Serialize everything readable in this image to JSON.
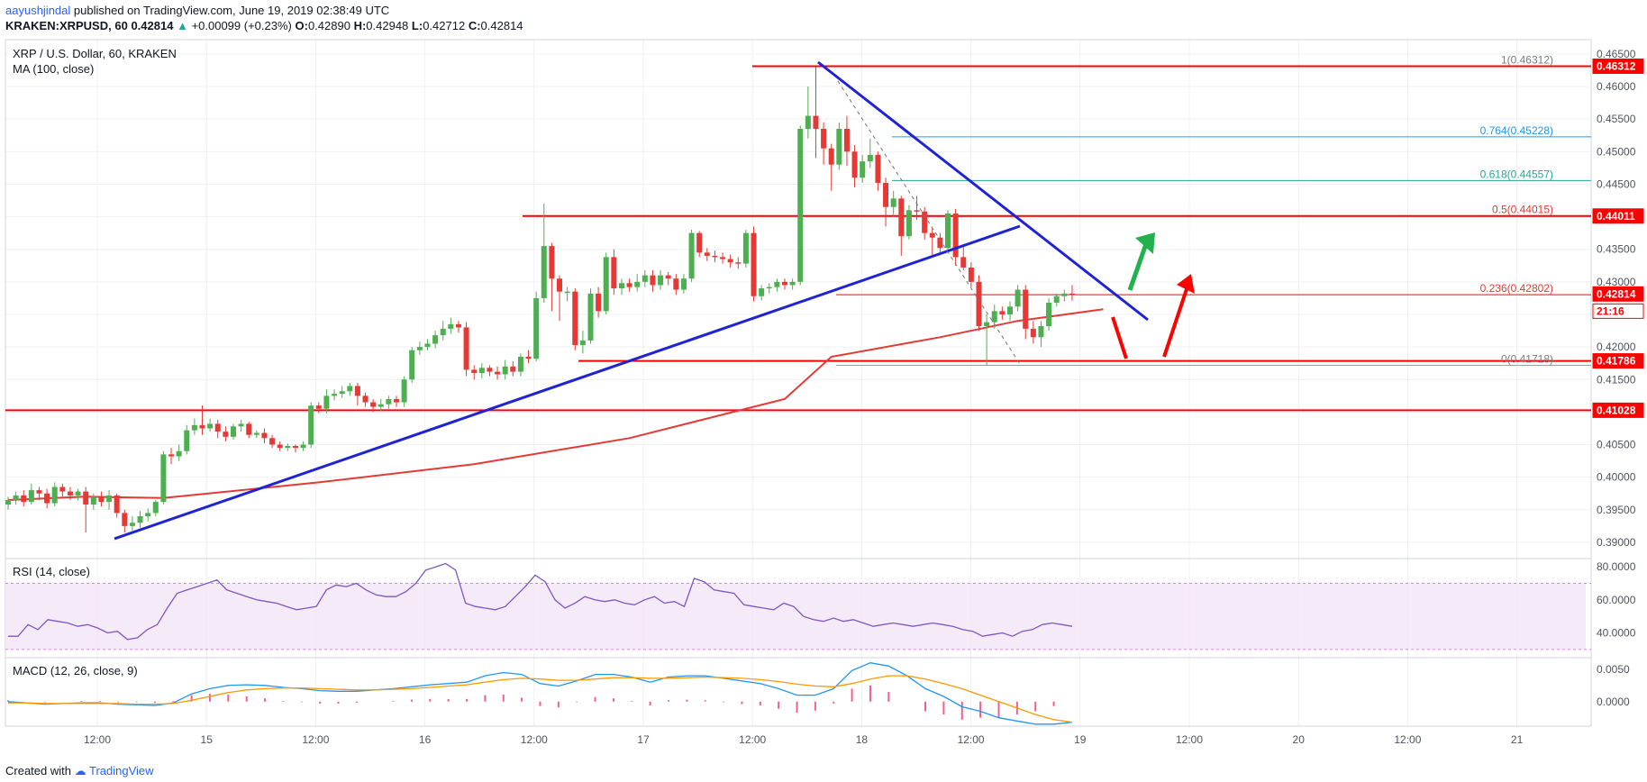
{
  "header": {
    "author": "aayushjindal",
    "published": "published on TradingView.com, June 19, 2019 02:38:49 UTC",
    "symbol": "KRAKEN:XRPUSD, 60",
    "last": "0.42814",
    "change": "+0.00099 (+0.23%)",
    "o_label": "O:",
    "o": "0.42890",
    "h_label": "H:",
    "h": "0.42948",
    "l_label": "L:",
    "l": "0.42712",
    "c_label": "C:",
    "c": "0.42814"
  },
  "legend": {
    "pair": "XRP / U.S. Dollar, 60, KRAKEN",
    "ma": "MA (100, close)",
    "rsi": "RSI (14, close)",
    "macd": "MACD (12, 26, close, 9)"
  },
  "footer": {
    "created": "Created with",
    "brand": "TradingView"
  },
  "colors": {
    "bull": "#4caf50",
    "bear": "#e53935",
    "ma": "#e53935",
    "trend": "#1f23d6",
    "level": "#ff0000",
    "rsi": "#7e57c2",
    "macd": "#2196f3",
    "signal": "#ff9800",
    "green_arrow": "#22b14c",
    "red_arrow": "#ff0000"
  },
  "chart_data": [
    {
      "type": "candlestick",
      "x_ticks": [
        "12:00",
        "15",
        "12:00",
        "16",
        "12:00",
        "17",
        "12:00",
        "18",
        "12:00",
        "19",
        "12:00",
        "20",
        "12:00",
        "21"
      ],
      "y_ticks": [
        "0.46500",
        "0.46000",
        "0.45500",
        "0.45000",
        "0.44500",
        "0.44000",
        "0.43500",
        "0.43000",
        "0.42500",
        "0.42000",
        "0.41500",
        "0.41000",
        "0.40500",
        "0.40000",
        "0.39500",
        "0.39000"
      ],
      "ylim": [
        0.3875,
        0.4672
      ],
      "price_badges": [
        {
          "value": "0.46312",
          "level": 0.46312
        },
        {
          "value": "0.44011",
          "level": 0.44011
        },
        {
          "value": "0.42814",
          "level": 0.42814
        },
        {
          "value": "21:16",
          "level": 0.4255,
          "style": "countdown"
        },
        {
          "value": "0.41786",
          "level": 0.41786
        },
        {
          "value": "0.41028",
          "level": 0.41028
        }
      ],
      "fib_labels": [
        {
          "ratio": "1",
          "value": "0.46312",
          "level": 0.46312
        },
        {
          "ratio": "0.764",
          "value": "0.45228",
          "level": 0.45228
        },
        {
          "ratio": "0.618",
          "value": "0.44557",
          "level": 0.44557
        },
        {
          "ratio": "0.5",
          "value": "0.44015",
          "level": 0.44015
        },
        {
          "ratio": "0.236",
          "value": "0.42802",
          "level": 0.42802
        },
        {
          "ratio": "0",
          "value": "0.41718",
          "level": 0.41718
        }
      ],
      "candles": [
        [
          0.3958,
          0.3965,
          0.395,
          0.397
        ],
        [
          0.3965,
          0.3972,
          0.3958,
          0.3978
        ],
        [
          0.3972,
          0.3962,
          0.3955,
          0.398
        ],
        [
          0.3962,
          0.398,
          0.3958,
          0.399
        ],
        [
          0.398,
          0.3975,
          0.3965,
          0.3985
        ],
        [
          0.3975,
          0.396,
          0.3952,
          0.3982
        ],
        [
          0.396,
          0.3985,
          0.3955,
          0.3992
        ],
        [
          0.3985,
          0.3978,
          0.397,
          0.399
        ],
        [
          0.3978,
          0.3972,
          0.3965,
          0.3985
        ],
        [
          0.3972,
          0.3978,
          0.3965,
          0.3982
        ],
        [
          0.3978,
          0.3958,
          0.3915,
          0.3985
        ],
        [
          0.3958,
          0.397,
          0.395,
          0.3975
        ],
        [
          0.397,
          0.3962,
          0.3955,
          0.3978
        ],
        [
          0.3962,
          0.3972,
          0.395,
          0.398
        ],
        [
          0.3972,
          0.3945,
          0.3938,
          0.3975
        ],
        [
          0.3945,
          0.3925,
          0.3915,
          0.395
        ],
        [
          0.3925,
          0.393,
          0.3918,
          0.394
        ],
        [
          0.393,
          0.394,
          0.3922,
          0.3948
        ],
        [
          0.394,
          0.3945,
          0.3932,
          0.3952
        ],
        [
          0.3945,
          0.3962,
          0.394,
          0.3965
        ],
        [
          0.3962,
          0.4035,
          0.3958,
          0.404
        ],
        [
          0.4035,
          0.4032,
          0.402,
          0.4045
        ],
        [
          0.4032,
          0.404,
          0.4025,
          0.405
        ],
        [
          0.404,
          0.4072,
          0.4035,
          0.408
        ],
        [
          0.4072,
          0.408,
          0.4065,
          0.409
        ],
        [
          0.408,
          0.4075,
          0.4065,
          0.411
        ],
        [
          0.4075,
          0.4082,
          0.407,
          0.409
        ],
        [
          0.4082,
          0.407,
          0.406,
          0.4088
        ],
        [
          0.407,
          0.4062,
          0.4055,
          0.4078
        ],
        [
          0.4062,
          0.4078,
          0.4058,
          0.4082
        ],
        [
          0.4078,
          0.4082,
          0.407,
          0.4088
        ],
        [
          0.4082,
          0.4065,
          0.406,
          0.4085
        ],
        [
          0.4065,
          0.4068,
          0.406,
          0.4072
        ],
        [
          0.4068,
          0.406,
          0.4052,
          0.4075
        ],
        [
          0.406,
          0.405,
          0.4045,
          0.4065
        ],
        [
          0.405,
          0.4045,
          0.404,
          0.4055
        ],
        [
          0.4045,
          0.4048,
          0.404,
          0.4052
        ],
        [
          0.4048,
          0.4045,
          0.4038,
          0.405
        ],
        [
          0.4045,
          0.405,
          0.404,
          0.4055
        ],
        [
          0.405,
          0.411,
          0.4045,
          0.4115
        ],
        [
          0.411,
          0.4105,
          0.4098,
          0.4115
        ],
        [
          0.4105,
          0.4125,
          0.4098,
          0.4135
        ],
        [
          0.4125,
          0.4128,
          0.4118,
          0.4135
        ],
        [
          0.4128,
          0.4132,
          0.4122,
          0.414
        ],
        [
          0.4132,
          0.414,
          0.4125,
          0.4145
        ],
        [
          0.414,
          0.4125,
          0.411,
          0.4145
        ],
        [
          0.4125,
          0.4115,
          0.4108,
          0.413
        ],
        [
          0.4115,
          0.4108,
          0.41,
          0.412
        ],
        [
          0.4108,
          0.4112,
          0.4102,
          0.412
        ],
        [
          0.4112,
          0.412,
          0.4105,
          0.4125
        ],
        [
          0.412,
          0.4115,
          0.4108,
          0.4125
        ],
        [
          0.4115,
          0.415,
          0.4108,
          0.4155
        ],
        [
          0.415,
          0.4195,
          0.4145,
          0.42
        ],
        [
          0.4195,
          0.42,
          0.4188,
          0.4208
        ],
        [
          0.42,
          0.4205,
          0.4195,
          0.4212
        ],
        [
          0.4205,
          0.4218,
          0.4198,
          0.4225
        ],
        [
          0.4218,
          0.4228,
          0.421,
          0.424
        ],
        [
          0.4228,
          0.4235,
          0.422,
          0.4245
        ],
        [
          0.4235,
          0.423,
          0.4222,
          0.424
        ],
        [
          0.423,
          0.4165,
          0.4155,
          0.4238
        ],
        [
          0.4165,
          0.416,
          0.415,
          0.4172
        ],
        [
          0.416,
          0.4168,
          0.4152,
          0.4175
        ],
        [
          0.4168,
          0.4162,
          0.4155,
          0.4172
        ],
        [
          0.4162,
          0.4158,
          0.415,
          0.417
        ],
        [
          0.4158,
          0.417,
          0.415,
          0.418
        ],
        [
          0.417,
          0.4162,
          0.4155,
          0.4178
        ],
        [
          0.4162,
          0.4185,
          0.4155,
          0.419
        ],
        [
          0.4185,
          0.4182,
          0.4175,
          0.4195
        ],
        [
          0.4182,
          0.4275,
          0.4178,
          0.4285
        ],
        [
          0.4275,
          0.4355,
          0.4268,
          0.442
        ],
        [
          0.4355,
          0.4305,
          0.4255,
          0.436
        ],
        [
          0.4305,
          0.4285,
          0.424,
          0.431
        ],
        [
          0.4285,
          0.4285,
          0.427,
          0.4292
        ],
        [
          0.4285,
          0.4203,
          0.4195,
          0.429
        ],
        [
          0.4203,
          0.421,
          0.419,
          0.4225
        ],
        [
          0.421,
          0.4282,
          0.4205,
          0.429
        ],
        [
          0.4282,
          0.4255,
          0.4245,
          0.4292
        ],
        [
          0.4255,
          0.4338,
          0.425,
          0.4345
        ],
        [
          0.4338,
          0.429,
          0.428,
          0.435
        ],
        [
          0.429,
          0.4298,
          0.428,
          0.4305
        ],
        [
          0.4298,
          0.4292,
          0.4285,
          0.4305
        ],
        [
          0.4292,
          0.43,
          0.4285,
          0.4312
        ],
        [
          0.43,
          0.431,
          0.4292,
          0.4318
        ],
        [
          0.431,
          0.4295,
          0.4285,
          0.4318
        ],
        [
          0.4295,
          0.431,
          0.4288,
          0.4318
        ],
        [
          0.431,
          0.4305,
          0.4295,
          0.4315
        ],
        [
          0.4305,
          0.4288,
          0.428,
          0.4312
        ],
        [
          0.4288,
          0.4305,
          0.4282,
          0.4312
        ],
        [
          0.4305,
          0.4375,
          0.43,
          0.438
        ],
        [
          0.4375,
          0.4345,
          0.4338,
          0.4378
        ],
        [
          0.4345,
          0.434,
          0.4332,
          0.4352
        ],
        [
          0.434,
          0.4338,
          0.433,
          0.4348
        ],
        [
          0.4338,
          0.4335,
          0.4328,
          0.4345
        ],
        [
          0.4335,
          0.433,
          0.4322,
          0.4342
        ],
        [
          0.433,
          0.4328,
          0.432,
          0.4338
        ],
        [
          0.4328,
          0.4375,
          0.4322,
          0.438
        ],
        [
          0.4375,
          0.4278,
          0.427,
          0.4385
        ],
        [
          0.4278,
          0.429,
          0.4272,
          0.4295
        ],
        [
          0.429,
          0.4292,
          0.4282,
          0.4298
        ],
        [
          0.4292,
          0.43,
          0.4285,
          0.4305
        ],
        [
          0.43,
          0.4295,
          0.4288,
          0.4305
        ],
        [
          0.4295,
          0.43,
          0.4288,
          0.4305
        ],
        [
          0.43,
          0.4535,
          0.4295,
          0.454
        ],
        [
          0.4535,
          0.4555,
          0.452,
          0.46
        ],
        [
          0.4555,
          0.4535,
          0.449,
          0.463
        ],
        [
          0.4535,
          0.4505,
          0.448,
          0.4545
        ],
        [
          0.4505,
          0.448,
          0.444,
          0.4512
        ],
        [
          0.448,
          0.4535,
          0.4472,
          0.4545
        ],
        [
          0.4535,
          0.45,
          0.4478,
          0.4555
        ],
        [
          0.45,
          0.446,
          0.4445,
          0.451
        ],
        [
          0.446,
          0.4485,
          0.4452,
          0.4495
        ],
        [
          0.4485,
          0.4495,
          0.4475,
          0.452
        ],
        [
          0.4495,
          0.4452,
          0.444,
          0.45
        ],
        [
          0.4452,
          0.4415,
          0.4385,
          0.446
        ],
        [
          0.4415,
          0.4428,
          0.44,
          0.444
        ],
        [
          0.4428,
          0.437,
          0.434,
          0.4432
        ],
        [
          0.437,
          0.441,
          0.4365,
          0.4418
        ],
        [
          0.441,
          0.4408,
          0.4395,
          0.4432
        ],
        [
          0.4408,
          0.4375,
          0.4365,
          0.4415
        ],
        [
          0.4375,
          0.4368,
          0.434,
          0.4382
        ],
        [
          0.4368,
          0.4352,
          0.4345,
          0.4375
        ],
        [
          0.4352,
          0.4405,
          0.4345,
          0.441
        ],
        [
          0.4405,
          0.4338,
          0.4325,
          0.4412
        ],
        [
          0.4338,
          0.4322,
          0.4318,
          0.4358
        ],
        [
          0.4322,
          0.43,
          0.4292,
          0.433
        ],
        [
          0.43,
          0.4232,
          0.4225,
          0.431
        ],
        [
          0.4232,
          0.4238,
          0.4172,
          0.425
        ],
        [
          0.4238,
          0.4255,
          0.4228,
          0.4265
        ],
        [
          0.4255,
          0.425,
          0.4242,
          0.4262
        ],
        [
          0.425,
          0.4262,
          0.424,
          0.427
        ],
        [
          0.4262,
          0.4288,
          0.4255,
          0.4295
        ],
        [
          0.4288,
          0.4228,
          0.4212,
          0.4295
        ],
        [
          0.4228,
          0.4215,
          0.4205,
          0.424
        ],
        [
          0.4215,
          0.4232,
          0.42,
          0.424
        ],
        [
          0.4232,
          0.4268,
          0.4225,
          0.4275
        ],
        [
          0.4268,
          0.4278,
          0.4262,
          0.4282
        ],
        [
          0.4278,
          0.4282,
          0.427,
          0.4288
        ],
        [
          0.4282,
          0.4281,
          0.4271,
          0.4295
        ]
      ],
      "ma_line": [
        [
          0,
          0.3965
        ],
        [
          10,
          0.397
        ],
        [
          20,
          0.3968
        ],
        [
          40,
          0.3992
        ],
        [
          60,
          0.402
        ],
        [
          80,
          0.406
        ],
        [
          100,
          0.412
        ],
        [
          106,
          0.4185
        ],
        [
          120,
          0.4215
        ],
        [
          130,
          0.424
        ],
        [
          135,
          0.4248
        ],
        [
          141,
          0.4258
        ]
      ],
      "horizontal_levels": [
        0.46312,
        0.44011,
        0.41786,
        0.41028
      ],
      "fib_line_level": 0.42802
    },
    {
      "type": "line",
      "name": "RSI",
      "y_ticks": [
        "80.0000",
        "60.0000",
        "40.0000"
      ],
      "ylim": [
        25,
        85
      ],
      "band": [
        30,
        70
      ],
      "values": [
        38,
        38,
        45,
        42,
        48,
        47,
        46,
        44,
        45,
        43,
        40,
        41,
        36,
        37,
        42,
        45,
        55,
        64,
        66,
        68,
        70,
        72,
        66,
        64,
        62,
        60,
        59,
        58,
        56,
        54,
        55,
        56,
        66,
        69,
        68,
        70,
        66,
        63,
        62,
        62,
        65,
        70,
        78,
        80,
        82,
        78,
        58,
        56,
        55,
        54,
        56,
        62,
        68,
        75,
        71,
        60,
        55,
        58,
        62,
        60,
        59,
        60,
        58,
        57,
        60,
        62,
        58,
        59,
        56,
        73,
        71,
        66,
        65,
        64,
        57,
        56,
        55,
        54,
        58,
        56,
        50,
        48,
        47,
        49,
        47,
        48,
        46,
        44,
        45,
        46,
        45,
        44,
        45,
        46,
        45,
        44,
        42,
        41,
        38,
        39,
        40,
        38,
        41,
        42,
        45,
        46,
        45,
        44
      ]
    },
    {
      "type": "line",
      "name": "MACD",
      "y_ticks": [
        "0.0050",
        "0.0000"
      ],
      "ylim": [
        -0.0038,
        0.0068
      ],
      "macd": [
        0.0,
        -0.0002,
        -0.0004,
        -0.0003,
        -0.0002,
        -0.0002,
        -0.0004,
        -0.0005,
        -0.0006,
        -0.0002,
        0.0012,
        0.002,
        0.0025,
        0.0026,
        0.0025,
        0.0022,
        0.002,
        0.0017,
        0.0016,
        0.0016,
        0.0018,
        0.002,
        0.0023,
        0.0026,
        0.0028,
        0.003,
        0.004,
        0.0045,
        0.0042,
        0.0028,
        0.0024,
        0.0032,
        0.0042,
        0.0042,
        0.0038,
        0.003,
        0.0038,
        0.004,
        0.004,
        0.0036,
        0.0032,
        0.0028,
        0.002,
        0.001,
        0.001,
        0.002,
        0.0048,
        0.006,
        0.0055,
        0.004,
        0.002,
        0.0008,
        -0.0008,
        -0.0015,
        -0.0025,
        -0.003,
        -0.0035,
        -0.0035,
        -0.0032
      ],
      "signal": [
        -0.0002,
        -0.0002,
        -0.0003,
        -0.0003,
        -0.0003,
        -0.0003,
        -0.0003,
        -0.0004,
        -0.0004,
        -0.0003,
        0.0002,
        0.0008,
        0.0014,
        0.0018,
        0.002,
        0.0021,
        0.0021,
        0.002,
        0.0019,
        0.0018,
        0.0018,
        0.0019,
        0.002,
        0.0022,
        0.0024,
        0.0026,
        0.003,
        0.0034,
        0.0036,
        0.0035,
        0.0033,
        0.0033,
        0.0035,
        0.0037,
        0.0037,
        0.0036,
        0.0036,
        0.0037,
        0.0038,
        0.0037,
        0.0036,
        0.0034,
        0.0031,
        0.0027,
        0.0024,
        0.0023,
        0.0028,
        0.0035,
        0.004,
        0.004,
        0.0035,
        0.0028,
        0.002,
        0.001,
        0.0,
        -0.001,
        -0.002,
        -0.0028,
        -0.0032
      ]
    }
  ]
}
